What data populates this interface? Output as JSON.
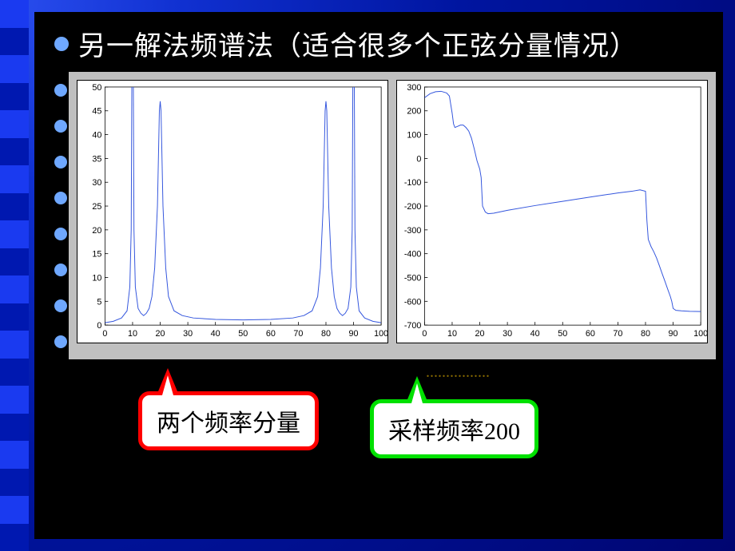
{
  "title": "另一解法频谱法（适合很多个正弦分量情况）",
  "callouts": {
    "red": {
      "text": "两个频率分量",
      "border": "#ff0000"
    },
    "green": {
      "text": "采样频率200",
      "border": "#00e000"
    }
  },
  "yellow_fragment": "................",
  "chart_left": {
    "type": "line",
    "xlim": [
      0,
      100
    ],
    "ylim": [
      0,
      50
    ],
    "xtick_step": 10,
    "ytick_step": 5,
    "tick_fontsize": 11,
    "background_color": "#ffffff",
    "panel_color": "#c0c0c0",
    "line_color": "#3355dd",
    "line_width": 1,
    "points": [
      [
        0,
        0.5
      ],
      [
        3,
        0.8
      ],
      [
        6,
        1.5
      ],
      [
        8,
        3
      ],
      [
        9,
        8
      ],
      [
        9.5,
        20
      ],
      [
        9.8,
        60
      ],
      [
        10,
        180
      ],
      [
        10.2,
        60
      ],
      [
        10.5,
        20
      ],
      [
        11,
        8
      ],
      [
        12,
        3.5
      ],
      [
        13,
        2.5
      ],
      [
        14,
        2
      ],
      [
        15,
        2.5
      ],
      [
        16,
        3.5
      ],
      [
        17,
        6
      ],
      [
        18,
        12
      ],
      [
        19,
        25
      ],
      [
        19.7,
        45
      ],
      [
        20,
        47
      ],
      [
        20.3,
        45
      ],
      [
        21,
        25
      ],
      [
        22,
        12
      ],
      [
        23,
        6
      ],
      [
        25,
        3
      ],
      [
        28,
        2
      ],
      [
        32,
        1.5
      ],
      [
        40,
        1.2
      ],
      [
        50,
        1.1
      ],
      [
        60,
        1.2
      ],
      [
        68,
        1.5
      ],
      [
        72,
        2
      ],
      [
        75,
        3
      ],
      [
        77,
        6
      ],
      [
        78,
        12
      ],
      [
        79,
        25
      ],
      [
        79.7,
        45
      ],
      [
        80,
        47
      ],
      [
        80.3,
        45
      ],
      [
        81,
        25
      ],
      [
        82,
        12
      ],
      [
        83,
        6
      ],
      [
        84,
        3.5
      ],
      [
        85,
        2.5
      ],
      [
        86,
        2
      ],
      [
        87,
        2.5
      ],
      [
        88,
        3.5
      ],
      [
        89,
        8
      ],
      [
        89.5,
        20
      ],
      [
        89.8,
        60
      ],
      [
        90,
        180
      ],
      [
        90.2,
        60
      ],
      [
        90.5,
        20
      ],
      [
        91,
        8
      ],
      [
        92,
        3
      ],
      [
        94,
        1.5
      ],
      [
        97,
        0.8
      ],
      [
        100,
        0.5
      ]
    ]
  },
  "chart_right": {
    "type": "line",
    "xlim": [
      0,
      100
    ],
    "ylim": [
      -700,
      300
    ],
    "xtick_step": 10,
    "ytick_step": 100,
    "tick_fontsize": 11,
    "background_color": "#ffffff",
    "panel_color": "#c0c0c0",
    "line_color": "#3355dd",
    "line_width": 1,
    "points": [
      [
        0,
        255
      ],
      [
        2,
        272
      ],
      [
        4,
        280
      ],
      [
        6,
        282
      ],
      [
        8,
        275
      ],
      [
        9,
        262
      ],
      [
        10,
        190
      ],
      [
        10.5,
        145
      ],
      [
        11,
        130
      ],
      [
        12,
        135
      ],
      [
        13,
        140
      ],
      [
        14,
        140
      ],
      [
        15,
        130
      ],
      [
        16,
        115
      ],
      [
        17,
        85
      ],
      [
        18,
        40
      ],
      [
        19,
        -10
      ],
      [
        20,
        -45
      ],
      [
        20.5,
        -80
      ],
      [
        21,
        -200
      ],
      [
        22,
        -225
      ],
      [
        23,
        -232
      ],
      [
        25,
        -230
      ],
      [
        30,
        -218
      ],
      [
        40,
        -198
      ],
      [
        50,
        -180
      ],
      [
        60,
        -162
      ],
      [
        70,
        -145
      ],
      [
        75,
        -138
      ],
      [
        78,
        -132
      ],
      [
        80,
        -138
      ],
      [
        80.5,
        -260
      ],
      [
        81,
        -340
      ],
      [
        82,
        -370
      ],
      [
        83,
        -392
      ],
      [
        84,
        -418
      ],
      [
        85,
        -450
      ],
      [
        86,
        -483
      ],
      [
        87,
        -515
      ],
      [
        88,
        -548
      ],
      [
        89,
        -580
      ],
      [
        89.5,
        -600
      ],
      [
        90,
        -630
      ],
      [
        91,
        -638
      ],
      [
        93,
        -640
      ],
      [
        96,
        -642
      ],
      [
        100,
        -643
      ]
    ]
  }
}
